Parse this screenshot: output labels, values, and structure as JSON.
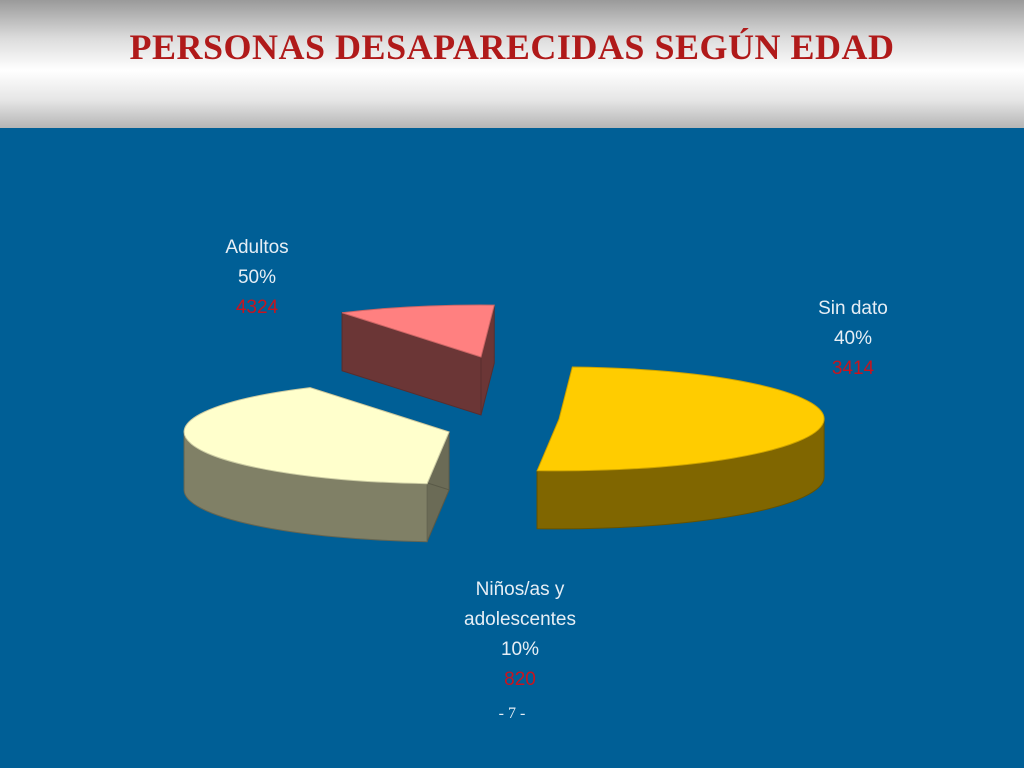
{
  "title": "PERSONAS DESAPARECIDAS SEGÚN EDAD",
  "page_number": "- 7 -",
  "chart_data": {
    "type": "pie",
    "style": "3d-exploded",
    "title": "PERSONAS DESAPARECIDAS SEGÚN EDAD",
    "slices": [
      {
        "name": "Adultos",
        "percent": "50%",
        "count": "4324",
        "value": 4324,
        "color": "#ffcc00"
      },
      {
        "name": "Sin dato",
        "percent": "40%",
        "count": "3414",
        "value": 3414,
        "color": "#ffffcc"
      },
      {
        "name": "Niños/as y adolescentes",
        "name_lines": [
          "Niños/as y",
          "adolescentes"
        ],
        "percent": "10%",
        "count": "820",
        "value": 820,
        "color": "#ff8080"
      }
    ]
  }
}
